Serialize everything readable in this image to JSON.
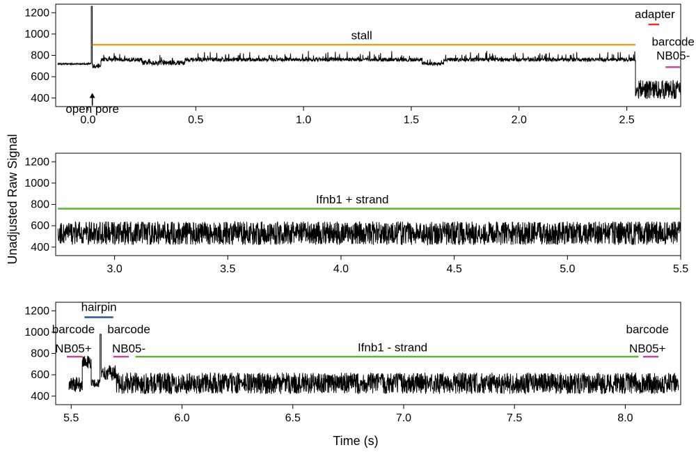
{
  "figure": {
    "ylabel": "Unadjusted Raw Signal",
    "xlabel": "Time (s)"
  },
  "chart_data": [
    {
      "type": "line",
      "panel": "top",
      "xlim": [
        -0.15,
        2.75
      ],
      "ylim": [
        320,
        1280
      ],
      "xticks": [
        0.0,
        0.5,
        1.0,
        1.5,
        2.0,
        2.5
      ],
      "xtick_labels": [
        "0.0",
        "0.5",
        "1.0",
        "1.5",
        "2.0",
        "2.5"
      ],
      "yticks": [
        400,
        600,
        800,
        1000,
        1200
      ],
      "ytick_labels": [
        "400",
        "600",
        "800",
        "1000",
        "1200"
      ],
      "signal": [
        {
          "t0": -0.14,
          "t1": 0.015,
          "base": 720,
          "amp": 8,
          "spike": 0
        },
        {
          "t0": 0.015,
          "t1": 0.02,
          "base": 1260,
          "amp": 0,
          "spike": 0
        },
        {
          "t0": 0.02,
          "t1": 0.06,
          "base": 700,
          "amp": 20,
          "spike": 0
        },
        {
          "t0": 0.06,
          "t1": 0.25,
          "base": 760,
          "amp": 18,
          "spike": 60
        },
        {
          "t0": 0.25,
          "t1": 0.45,
          "base": 730,
          "amp": 22,
          "spike": 70
        },
        {
          "t0": 0.45,
          "t1": 1.55,
          "base": 760,
          "amp": 18,
          "spike": 70
        },
        {
          "t0": 1.55,
          "t1": 1.65,
          "base": 720,
          "amp": 15,
          "spike": 40
        },
        {
          "t0": 1.65,
          "t1": 2.54,
          "base": 760,
          "amp": 18,
          "spike": 70
        },
        {
          "t0": 2.54,
          "t1": 2.75,
          "base": 480,
          "amp": 90,
          "spike": 0
        }
      ],
      "annotations": [
        {
          "label": "stall",
          "x0": 0.02,
          "x1": 2.54,
          "y": 900,
          "color": "#e8a02a",
          "label_x": 1.27,
          "label_y": 950,
          "anchor": "middle"
        },
        {
          "label": "adapter",
          "x0": 2.6,
          "x1": 2.65,
          "y": 1090,
          "color": "#e8312a",
          "label_x": 2.63,
          "label_y": 1150,
          "anchor": "middle"
        },
        {
          "label": "barcode",
          "x0": 2.68,
          "x1": 2.75,
          "y": 690,
          "color": "#c2479c",
          "label_x": 2.715,
          "label_y": 890,
          "anchor": "middle",
          "label2": "NB05-",
          "label2_y": 760
        }
      ],
      "arrow_annotations": [
        {
          "label": "open pore",
          "x": 0.02,
          "y_tail": 330,
          "y_head": 440,
          "label_y": 260
        }
      ]
    },
    {
      "type": "line",
      "panel": "middle",
      "xlim": [
        2.74,
        5.5
      ],
      "ylim": [
        320,
        1280
      ],
      "xticks": [
        3.0,
        3.5,
        4.0,
        4.5,
        5.0,
        5.5
      ],
      "xtick_labels": [
        "3.0",
        "3.5",
        "4.0",
        "4.5",
        "5.0",
        "5.5"
      ],
      "yticks": [
        400,
        600,
        800,
        1000,
        1200
      ],
      "ytick_labels": [
        "400",
        "600",
        "800",
        "1000",
        "1200"
      ],
      "signal": [
        {
          "t0": 2.75,
          "t1": 5.5,
          "base": 530,
          "amp": 110,
          "spike": 0
        }
      ],
      "annotations": [
        {
          "label": "Ifnb1 + strand",
          "x0": 2.75,
          "x1": 5.5,
          "y": 760,
          "color": "#5ab532",
          "label_x": 4.05,
          "label_y": 810,
          "anchor": "middle"
        }
      ],
      "arrow_annotations": []
    },
    {
      "type": "line",
      "panel": "bottom",
      "xlim": [
        5.43,
        8.25
      ],
      "ylim": [
        320,
        1280
      ],
      "xticks": [
        5.5,
        6.0,
        6.5,
        7.0,
        7.5,
        8.0
      ],
      "xtick_labels": [
        "5.5",
        "6.0",
        "6.5",
        "7.0",
        "7.5",
        "8.0"
      ],
      "yticks": [
        400,
        600,
        800,
        1000,
        1200
      ],
      "ytick_labels": [
        "400",
        "600",
        "800",
        "1000",
        "1200"
      ],
      "signal": [
        {
          "t0": 5.49,
          "t1": 5.55,
          "base": 510,
          "amp": 70,
          "spike": 0
        },
        {
          "t0": 5.55,
          "t1": 5.59,
          "base": 720,
          "amp": 60,
          "spike": 0
        },
        {
          "t0": 5.59,
          "t1": 5.63,
          "base": 520,
          "amp": 40,
          "spike": 0
        },
        {
          "t0": 5.63,
          "t1": 5.635,
          "base": 980,
          "amp": 0,
          "spike": 0
        },
        {
          "t0": 5.635,
          "t1": 5.7,
          "base": 620,
          "amp": 70,
          "spike": 0
        },
        {
          "t0": 5.7,
          "t1": 8.24,
          "base": 520,
          "amp": 100,
          "spike": 0
        }
      ],
      "annotations": [
        {
          "label": "hairpin",
          "x0": 5.56,
          "x1": 5.69,
          "y": 1140,
          "color": "#2e4f9e",
          "label_x": 5.625,
          "label_y": 1200,
          "anchor": "middle"
        },
        {
          "label": "barcode",
          "x0": 5.48,
          "x1": 5.55,
          "y": 770,
          "color": "#c2479c",
          "label_x": 5.51,
          "label_y": 990,
          "anchor": "middle",
          "label2": "NB05+",
          "label2_y": 810
        },
        {
          "label": "barcode",
          "x0": 5.69,
          "x1": 5.76,
          "y": 770,
          "color": "#c2479c",
          "label_x": 5.76,
          "label_y": 990,
          "anchor": "middle",
          "label2": "NB05-",
          "label2_y": 810
        },
        {
          "label": "Ifnb1 - strand",
          "x0": 5.79,
          "x1": 8.06,
          "y": 770,
          "color": "#5ab532",
          "label_x": 6.95,
          "label_y": 820,
          "anchor": "middle"
        },
        {
          "label": "barcode",
          "x0": 8.08,
          "x1": 8.15,
          "y": 770,
          "color": "#c2479c",
          "label_x": 8.1,
          "label_y": 990,
          "anchor": "middle",
          "label2": "NB05+",
          "label2_y": 810
        }
      ],
      "arrow_annotations": []
    }
  ]
}
